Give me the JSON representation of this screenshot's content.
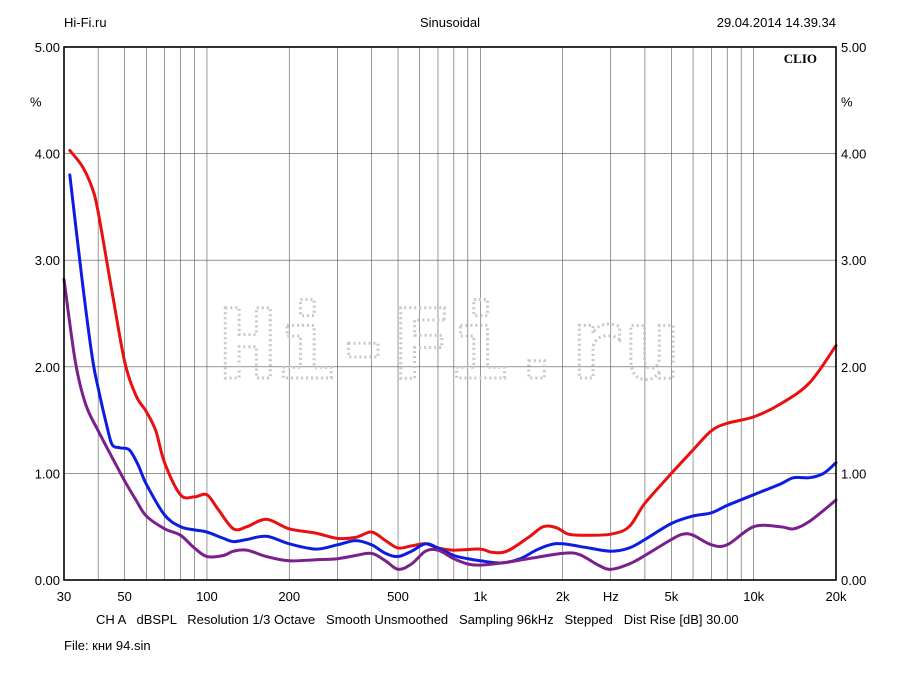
{
  "header": {
    "site": "Hi-Fi.ru",
    "mode": "Sinusoidal",
    "datetime": "29.04.2014 14.39.34"
  },
  "brand_label": "CLIO",
  "watermark": "Hi-Fi.ru",
  "footer": {
    "settings": "CH A   dBSPL   Resolution 1/3 Octave   Smooth Unsmoothed   Sampling 96kHz   Stepped   Dist Rise [dB] 30.00",
    "file": "File: кни 94.sin"
  },
  "chart_data": {
    "type": "line",
    "x_scale": "log",
    "xlim": [
      30,
      20000
    ],
    "ylim": [
      0,
      5
    ],
    "grid": true,
    "ylabel_left": "%",
    "ylabel_right": "%",
    "xticks": [
      {
        "value": 30,
        "label": "30"
      },
      {
        "value": 50,
        "label": "50"
      },
      {
        "value": 100,
        "label": "100"
      },
      {
        "value": 200,
        "label": "200"
      },
      {
        "value": 500,
        "label": "500"
      },
      {
        "value": 1000,
        "label": "1k"
      },
      {
        "value": 2000,
        "label": "2k"
      },
      {
        "value": 3000,
        "label": "Hz"
      },
      {
        "value": 5000,
        "label": "5k"
      },
      {
        "value": 10000,
        "label": "10k"
      },
      {
        "value": 20000,
        "label": "20k"
      }
    ],
    "yticks": [
      {
        "value": 0,
        "label": "0.00"
      },
      {
        "value": 1,
        "label": "1.00"
      },
      {
        "value": 2,
        "label": "2.00"
      },
      {
        "value": 3,
        "label": "3.00"
      },
      {
        "value": 4,
        "label": "4.00"
      },
      {
        "value": 5,
        "label": "5.00"
      }
    ],
    "series": [
      {
        "color": "#e81010",
        "points": [
          [
            31.5,
            4.03
          ],
          [
            35,
            3.88
          ],
          [
            38,
            3.68
          ],
          [
            40,
            3.45
          ],
          [
            45,
            2.7
          ],
          [
            50,
            2.05
          ],
          [
            55,
            1.73
          ],
          [
            60,
            1.58
          ],
          [
            65,
            1.4
          ],
          [
            70,
            1.1
          ],
          [
            80,
            0.8
          ],
          [
            90,
            0.78
          ],
          [
            100,
            0.8
          ],
          [
            110,
            0.66
          ],
          [
            125,
            0.48
          ],
          [
            140,
            0.5
          ],
          [
            165,
            0.57
          ],
          [
            200,
            0.48
          ],
          [
            250,
            0.44
          ],
          [
            300,
            0.39
          ],
          [
            350,
            0.4
          ],
          [
            400,
            0.45
          ],
          [
            450,
            0.37
          ],
          [
            500,
            0.3
          ],
          [
            560,
            0.32
          ],
          [
            630,
            0.34
          ],
          [
            700,
            0.3
          ],
          [
            800,
            0.28
          ],
          [
            1000,
            0.29
          ],
          [
            1100,
            0.26
          ],
          [
            1250,
            0.27
          ],
          [
            1500,
            0.4
          ],
          [
            1700,
            0.5
          ],
          [
            1900,
            0.49
          ],
          [
            2100,
            0.43
          ],
          [
            2400,
            0.42
          ],
          [
            3000,
            0.43
          ],
          [
            3500,
            0.5
          ],
          [
            4000,
            0.72
          ],
          [
            5000,
            1.0
          ],
          [
            6000,
            1.22
          ],
          [
            7000,
            1.4
          ],
          [
            8000,
            1.47
          ],
          [
            10000,
            1.53
          ],
          [
            12500,
            1.65
          ],
          [
            16000,
            1.85
          ],
          [
            20000,
            2.2
          ]
        ]
      },
      {
        "color": "#0c1de0",
        "points": [
          [
            31.5,
            3.8
          ],
          [
            35,
            2.8
          ],
          [
            38,
            2.1
          ],
          [
            40,
            1.8
          ],
          [
            43,
            1.45
          ],
          [
            45,
            1.27
          ],
          [
            48,
            1.24
          ],
          [
            52,
            1.22
          ],
          [
            56,
            1.08
          ],
          [
            60,
            0.9
          ],
          [
            70,
            0.61
          ],
          [
            80,
            0.5
          ],
          [
            90,
            0.47
          ],
          [
            100,
            0.45
          ],
          [
            115,
            0.39
          ],
          [
            125,
            0.36
          ],
          [
            140,
            0.38
          ],
          [
            165,
            0.41
          ],
          [
            200,
            0.34
          ],
          [
            250,
            0.29
          ],
          [
            300,
            0.33
          ],
          [
            350,
            0.37
          ],
          [
            400,
            0.33
          ],
          [
            450,
            0.25
          ],
          [
            500,
            0.22
          ],
          [
            560,
            0.27
          ],
          [
            630,
            0.34
          ],
          [
            700,
            0.3
          ],
          [
            800,
            0.23
          ],
          [
            900,
            0.2
          ],
          [
            1000,
            0.18
          ],
          [
            1200,
            0.16
          ],
          [
            1400,
            0.2
          ],
          [
            1600,
            0.28
          ],
          [
            1800,
            0.33
          ],
          [
            2000,
            0.34
          ],
          [
            2500,
            0.3
          ],
          [
            3000,
            0.27
          ],
          [
            3500,
            0.3
          ],
          [
            4000,
            0.38
          ],
          [
            5000,
            0.53
          ],
          [
            6000,
            0.6
          ],
          [
            7000,
            0.63
          ],
          [
            8000,
            0.7
          ],
          [
            10000,
            0.8
          ],
          [
            12500,
            0.9
          ],
          [
            14000,
            0.96
          ],
          [
            16000,
            0.96
          ],
          [
            18000,
            1.0
          ],
          [
            20000,
            1.1
          ]
        ]
      },
      {
        "color": "#7a1f8c",
        "points": [
          [
            30,
            2.82
          ],
          [
            33,
            2.05
          ],
          [
            36,
            1.65
          ],
          [
            40,
            1.4
          ],
          [
            45,
            1.15
          ],
          [
            50,
            0.93
          ],
          [
            55,
            0.75
          ],
          [
            60,
            0.6
          ],
          [
            70,
            0.48
          ],
          [
            80,
            0.42
          ],
          [
            90,
            0.3
          ],
          [
            100,
            0.22
          ],
          [
            115,
            0.23
          ],
          [
            125,
            0.27
          ],
          [
            140,
            0.28
          ],
          [
            165,
            0.22
          ],
          [
            200,
            0.18
          ],
          [
            250,
            0.19
          ],
          [
            300,
            0.2
          ],
          [
            350,
            0.23
          ],
          [
            400,
            0.25
          ],
          [
            450,
            0.18
          ],
          [
            500,
            0.1
          ],
          [
            560,
            0.15
          ],
          [
            630,
            0.27
          ],
          [
            700,
            0.28
          ],
          [
            800,
            0.2
          ],
          [
            900,
            0.15
          ],
          [
            1000,
            0.14
          ],
          [
            1200,
            0.16
          ],
          [
            1500,
            0.2
          ],
          [
            2000,
            0.25
          ],
          [
            2300,
            0.24
          ],
          [
            2700,
            0.14
          ],
          [
            3000,
            0.1
          ],
          [
            3500,
            0.15
          ],
          [
            4000,
            0.23
          ],
          [
            5000,
            0.38
          ],
          [
            5500,
            0.43
          ],
          [
            6000,
            0.42
          ],
          [
            7000,
            0.33
          ],
          [
            8000,
            0.33
          ],
          [
            10000,
            0.5
          ],
          [
            12500,
            0.5
          ],
          [
            14000,
            0.48
          ],
          [
            16000,
            0.55
          ],
          [
            20000,
            0.75
          ]
        ]
      }
    ]
  }
}
